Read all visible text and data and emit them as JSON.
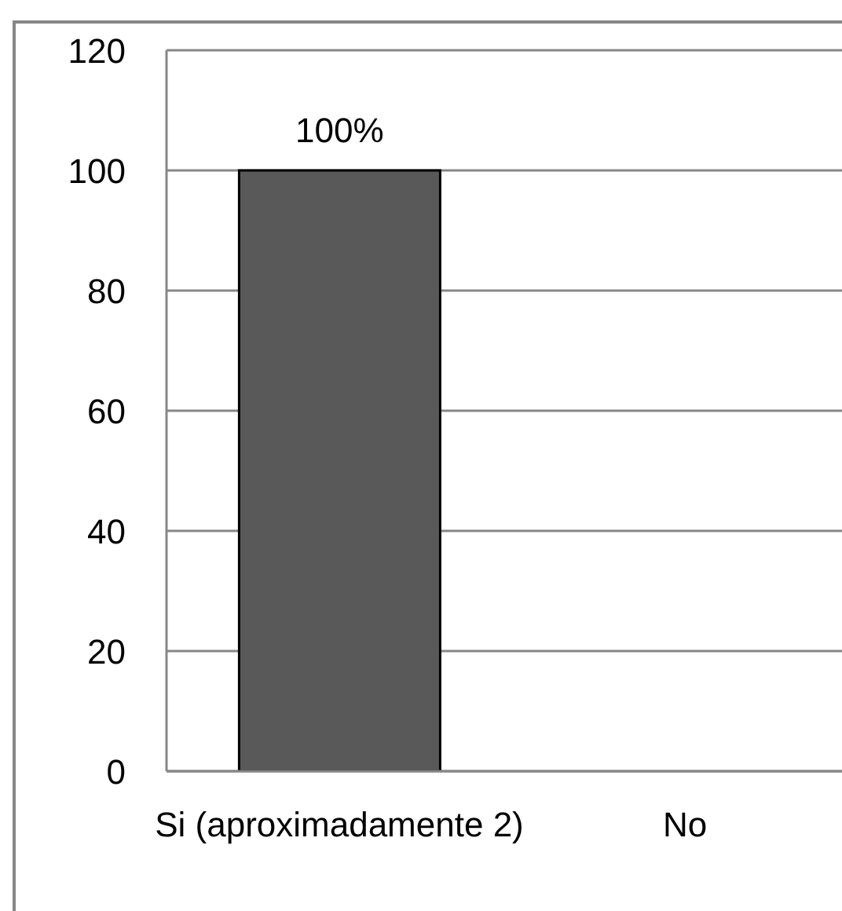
{
  "chart_data": {
    "type": "bar",
    "categories": [
      "Si (aproximadamente 2)",
      "No"
    ],
    "values": [
      100,
      0
    ],
    "color": "#595959",
    "value_labels": [
      "100%",
      null
    ],
    "ylim": [
      0,
      120
    ],
    "yticks": [
      0,
      20,
      40,
      60,
      80,
      100,
      120
    ],
    "grid": "y"
  }
}
